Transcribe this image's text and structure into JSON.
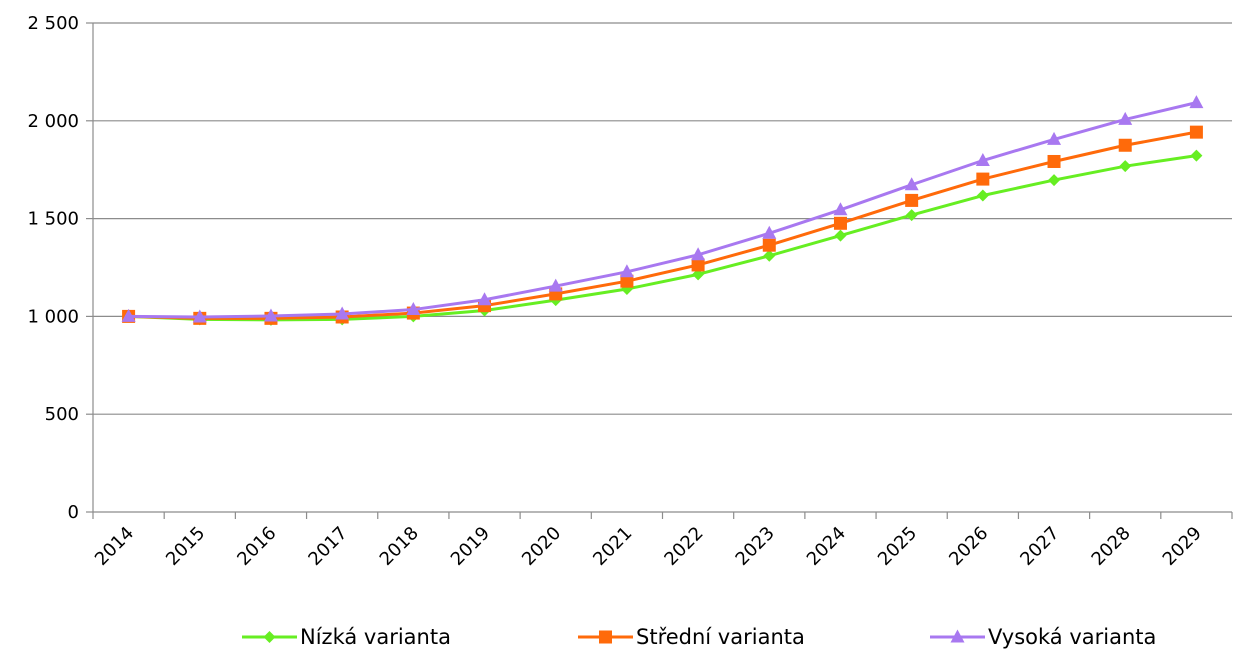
{
  "chart_data": {
    "type": "line",
    "title": "",
    "xlabel": "",
    "ylabel": "",
    "x": [
      "2014",
      "2015",
      "2016",
      "2017",
      "2018",
      "2019",
      "2020",
      "2021",
      "2022",
      "2023",
      "2024",
      "2025",
      "2026",
      "2027",
      "2028",
      "2029"
    ],
    "y_ticks": [
      "0",
      "500",
      "1 000",
      "1 500",
      "2 000",
      "2 500"
    ],
    "ylim": [
      0,
      2500
    ],
    "grid": "horizontal",
    "legend_position": "bottom",
    "series": [
      {
        "name": "Nízká varianta",
        "color": "#66ee22",
        "marker": "diamond",
        "values": [
          1000,
          985,
          982,
          985,
          1000,
          1030,
          1083,
          1140,
          1215,
          1310,
          1413,
          1518,
          1618,
          1697,
          1768,
          1822
        ]
      },
      {
        "name": "Střední varianta",
        "color": "#ff6a0a",
        "marker": "square",
        "values": [
          1000,
          990,
          990,
          997,
          1017,
          1055,
          1115,
          1180,
          1263,
          1364,
          1476,
          1593,
          1702,
          1792,
          1875,
          1942
        ]
      },
      {
        "name": "Vysoká varianta",
        "color": "#a878f0",
        "marker": "triangle",
        "values": [
          1000,
          997,
          1002,
          1012,
          1035,
          1085,
          1155,
          1228,
          1315,
          1425,
          1545,
          1673,
          1797,
          1905,
          2007,
          2093
        ]
      }
    ]
  }
}
